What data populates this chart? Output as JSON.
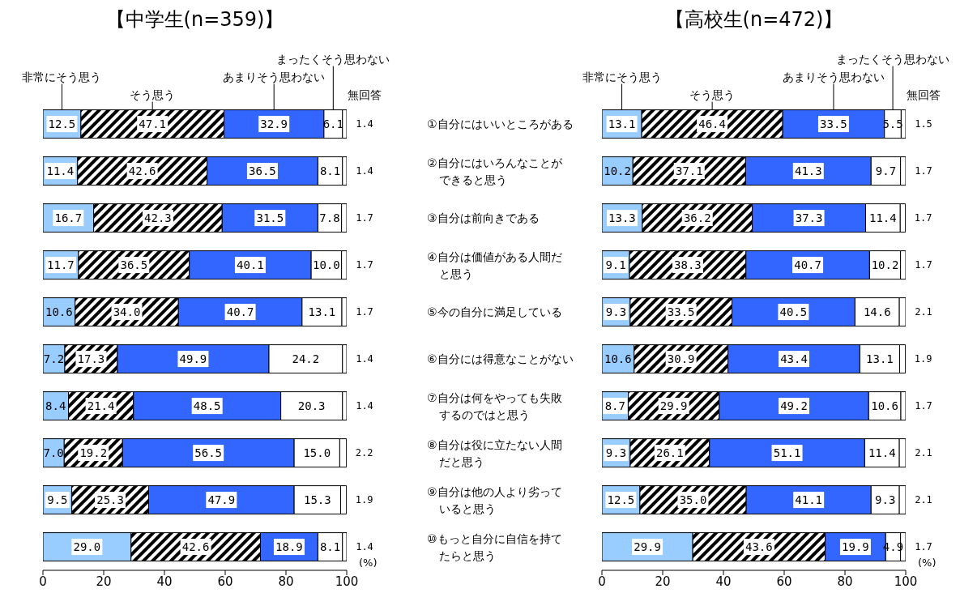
{
  "chart_data": [
    {
      "type": "bar",
      "orientation": "horizontal",
      "stacked": true,
      "title": "【中学生(n=359)】",
      "xlabel": "(%)",
      "xlim": [
        0,
        100
      ],
      "xticks": [
        0,
        20,
        40,
        60,
        80,
        100
      ],
      "categories": [
        null,
        null,
        null,
        null,
        null,
        null,
        null,
        null,
        null,
        null
      ],
      "series": [
        {
          "name": "非常にそう思う",
          "color": "#99ccff",
          "values": [
            12.5,
            11.4,
            16.7,
            11.7,
            10.6,
            7.2,
            8.4,
            7.0,
            9.5,
            29.0
          ],
          "value_labels": [
            "12.5",
            "11.4",
            "16.7",
            "11.7",
            "10.6",
            "7.2",
            "8.4",
            "7.0",
            "9.5",
            "29.0"
          ]
        },
        {
          "name": "そう思う",
          "color": "#000000",
          "values": [
            47.1,
            42.6,
            42.3,
            36.5,
            34.0,
            17.3,
            21.4,
            19.2,
            25.3,
            42.6
          ],
          "value_labels": [
            "47.1",
            "42.6",
            "42.3",
            "36.5",
            "34.0",
            "17.3",
            "21.4",
            "19.2",
            "25.3",
            "42.6"
          ]
        },
        {
          "name": "あまりそう思わない",
          "color": "#3366ff",
          "values": [
            32.9,
            36.5,
            31.5,
            40.1,
            40.7,
            49.9,
            48.5,
            56.5,
            47.9,
            18.9
          ],
          "value_labels": [
            "32.9",
            "36.5",
            "31.5",
            "40.1",
            "40.7",
            "49.9",
            "48.5",
            "56.5",
            "47.9",
            "18.9"
          ]
        },
        {
          "name": "まったくそう思わない",
          "color": "#ffffff",
          "values": [
            6.1,
            8.1,
            7.8,
            10.0,
            13.1,
            24.2,
            20.3,
            15.0,
            15.3,
            8.1
          ],
          "value_labels": [
            "6.1",
            "8.1",
            "7.8",
            "10.0",
            "13.1",
            "24.2",
            "20.3",
            "15.0",
            "15.3",
            "8.1"
          ]
        },
        {
          "name": "無回答",
          "color": "#ffffff",
          "values": [
            1.4,
            1.4,
            1.7,
            1.7,
            1.7,
            1.4,
            1.4,
            2.2,
            1.9,
            1.4
          ],
          "value_labels": [
            "1.4",
            "1.4",
            "1.7",
            "1.7",
            "1.7",
            "1.4",
            "1.4",
            "2.2",
            "1.9",
            "1.4"
          ]
        }
      ]
    },
    {
      "type": "bar",
      "orientation": "horizontal",
      "stacked": true,
      "title": "【高校生(n=472)】",
      "xlabel": "(%)",
      "xlim": [
        0,
        100
      ],
      "xticks": [
        0,
        20,
        40,
        60,
        80,
        100
      ],
      "categories": [
        "①自分にはいいところがある",
        "②自分にはいろんなことができると思う",
        "③自分は前向きである",
        "④自分は価値がある人間だと思う",
        "⑤今の自分に満足している",
        "⑥自分には得意なことがない",
        "⑦自分は何をやっても失敗するのではと思う",
        "⑧自分は役に立たない人間だと思う",
        "⑨自分は他の人より劣っていると思う",
        "⑩もっと自分に自信を持てたらと思う"
      ],
      "series": [
        {
          "name": "非常にそう思う",
          "color": "#99ccff",
          "values": [
            13.1,
            10.2,
            13.3,
            9.1,
            9.3,
            10.6,
            8.7,
            9.3,
            12.5,
            29.9
          ],
          "value_labels": [
            "13.1",
            "10.2",
            "13.3",
            "9.1",
            "9.3",
            "10.6",
            "8.7",
            "9.3",
            "12.5",
            "29.9"
          ]
        },
        {
          "name": "そう思う",
          "color": "#000000",
          "values": [
            46.4,
            37.1,
            36.2,
            38.3,
            33.5,
            30.9,
            29.9,
            26.1,
            35.0,
            43.6
          ],
          "value_labels": [
            "46.4",
            "37.1",
            "36.2",
            "38.3",
            "33.5",
            "30.9",
            "29.9",
            "26.1",
            "35.0",
            "43.6"
          ]
        },
        {
          "name": "あまりそう思わない",
          "color": "#3366ff",
          "values": [
            33.5,
            41.3,
            37.3,
            40.7,
            40.5,
            43.4,
            49.2,
            51.1,
            41.1,
            19.9
          ],
          "value_labels": [
            "33.5",
            "41.3",
            "37.3",
            "40.7",
            "40.5",
            "43.4",
            "49.2",
            "51.1",
            "41.1",
            "19.9"
          ]
        },
        {
          "name": "まったくそう思わない",
          "color": "#ffffff",
          "values": [
            5.5,
            9.7,
            11.4,
            10.2,
            14.6,
            13.1,
            10.6,
            11.4,
            9.3,
            4.9
          ],
          "value_labels": [
            "5.5",
            "9.7",
            "11.4",
            "10.2",
            "14.6",
            "13.1",
            "10.6",
            "11.4",
            "9.3",
            "4.9"
          ]
        },
        {
          "name": "無回答",
          "color": "#ffffff",
          "values": [
            1.5,
            1.7,
            1.7,
            1.7,
            2.1,
            1.9,
            1.7,
            2.1,
            2.1,
            1.7
          ],
          "value_labels": [
            "1.5",
            "1.7",
            "1.7",
            "1.7",
            "2.1",
            "1.9",
            "1.7",
            "2.1",
            "2.1",
            "1.7"
          ]
        }
      ]
    }
  ]
}
